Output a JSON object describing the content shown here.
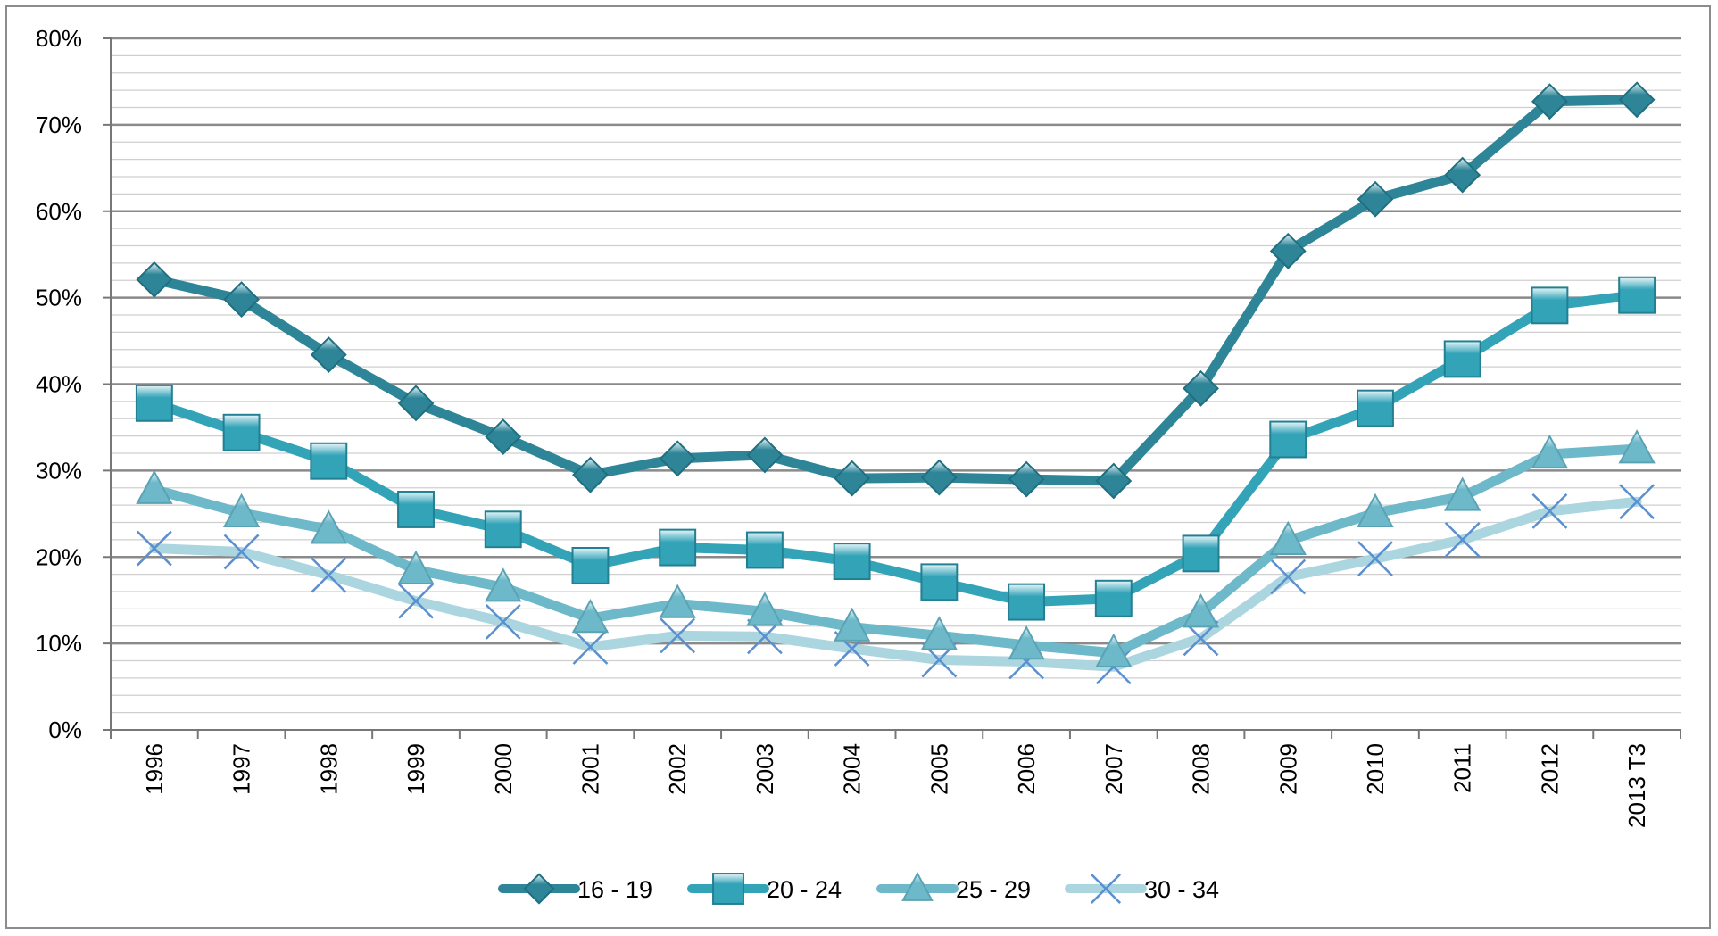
{
  "chart_data": {
    "type": "line",
    "title": "",
    "xlabel": "",
    "ylabel": "",
    "ylim": [
      0,
      80
    ],
    "y_unit": "%",
    "y_ticks": [
      "0%",
      "10%",
      "20%",
      "30%",
      "40%",
      "50%",
      "60%",
      "70%",
      "80%"
    ],
    "y_tick_values": [
      0,
      10,
      20,
      30,
      40,
      50,
      60,
      70,
      80
    ],
    "minor_gridlines_per_major": 5,
    "grid": true,
    "legend_position": "bottom",
    "categories": [
      "1996",
      "1997",
      "1998",
      "1999",
      "2000",
      "2001",
      "2002",
      "2003",
      "2004",
      "2005",
      "2006",
      "2007",
      "2008",
      "2009",
      "2010",
      "2011",
      "2012",
      "2013 T3"
    ],
    "series": [
      {
        "name": "16 - 19",
        "marker": "diamond",
        "color": "#2e8598",
        "values": [
          52.1,
          49.8,
          43.4,
          37.8,
          33.9,
          29.5,
          31.4,
          31.8,
          29.1,
          29.2,
          29.0,
          28.8,
          39.5,
          55.4,
          61.4,
          64.2,
          72.7,
          72.9
        ]
      },
      {
        "name": "20 - 24",
        "marker": "square",
        "color": "#33a3b8",
        "values": [
          37.8,
          34.4,
          31.1,
          25.5,
          23.2,
          19.0,
          21.1,
          20.8,
          19.5,
          17.1,
          14.8,
          15.2,
          20.4,
          33.6,
          37.2,
          42.9,
          49.1,
          50.3
        ]
      },
      {
        "name": "25 - 29",
        "marker": "triangle",
        "color": "#6db8c9",
        "values": [
          27.8,
          25.1,
          23.2,
          18.5,
          16.5,
          12.9,
          14.6,
          13.7,
          11.9,
          10.9,
          9.8,
          8.9,
          13.5,
          21.9,
          25.1,
          27.0,
          31.9,
          32.5
        ]
      },
      {
        "name": "30 - 34",
        "marker": "x",
        "color": "#abd6e0",
        "values": [
          21.0,
          20.6,
          17.9,
          14.9,
          12.5,
          9.6,
          10.9,
          10.8,
          9.4,
          8.1,
          7.9,
          7.3,
          10.6,
          17.7,
          19.8,
          22.0,
          25.3,
          26.4
        ]
      }
    ]
  }
}
